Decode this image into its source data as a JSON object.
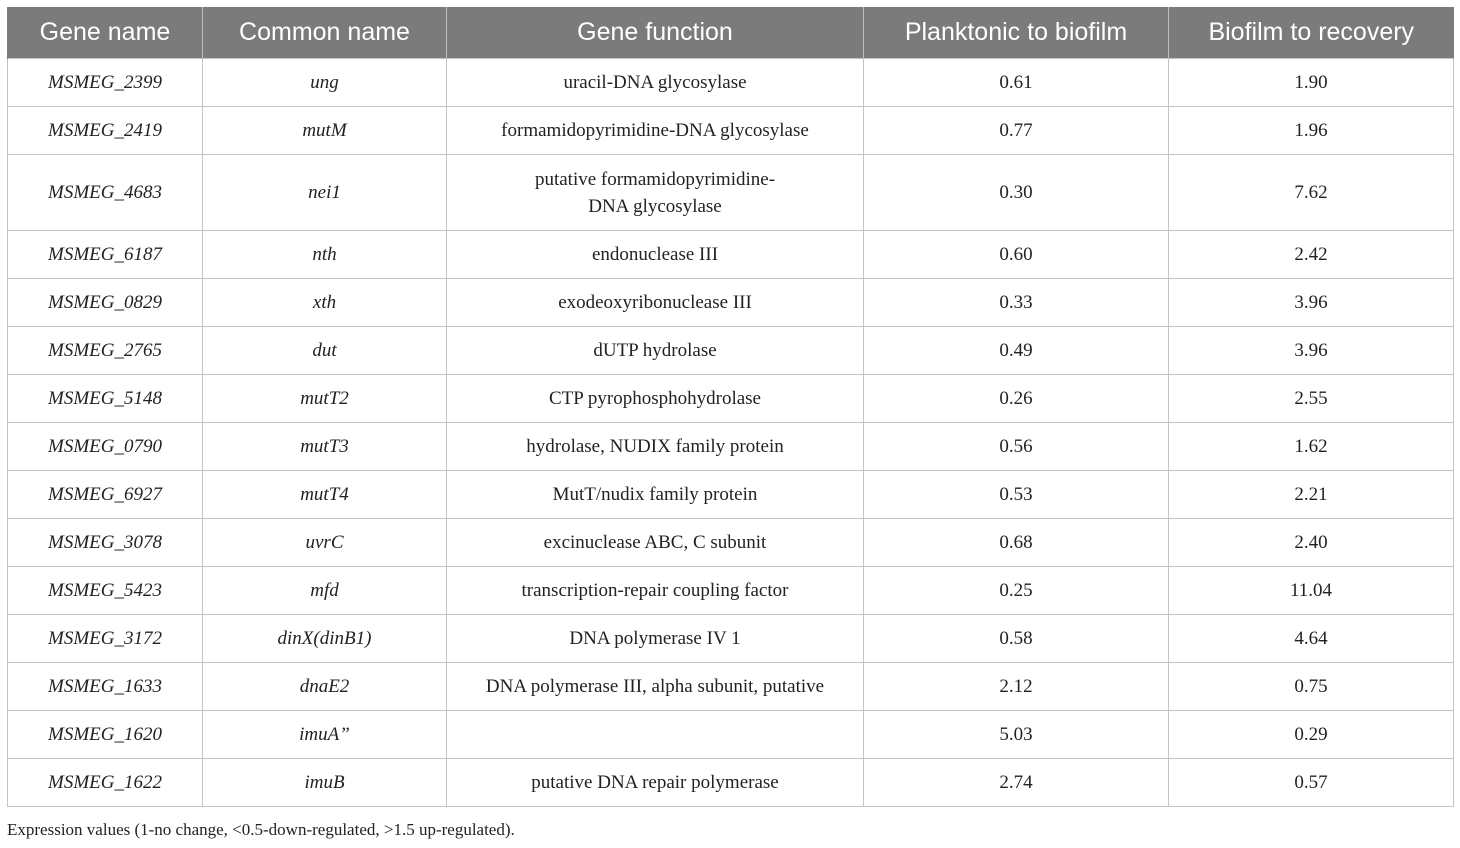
{
  "table": {
    "headers": [
      "Gene name",
      "Common name",
      "Gene function",
      "Planktonic to biofilm",
      "Biofilm to recovery"
    ],
    "rows": [
      {
        "gene": "MSMEG_2399",
        "common": "ung",
        "function": "uracil-DNA glycosylase",
        "planktonic_to_biofilm": "0.61",
        "biofilm_to_recovery": "1.90"
      },
      {
        "gene": "MSMEG_2419",
        "common": "mutM",
        "function": "formamidopyrimidine-DNA glycosylase",
        "planktonic_to_biofilm": "0.77",
        "biofilm_to_recovery": "1.96"
      },
      {
        "gene": "MSMEG_4683",
        "common": "nei1",
        "function": "putative formamidopyrimidine-DNA glycosylase",
        "planktonic_to_biofilm": "0.30",
        "biofilm_to_recovery": "7.62"
      },
      {
        "gene": "MSMEG_6187",
        "common": "nth",
        "function": "endonuclease III",
        "planktonic_to_biofilm": "0.60",
        "biofilm_to_recovery": "2.42"
      },
      {
        "gene": "MSMEG_0829",
        "common": "xth",
        "function": "exodeoxyribonuclease III",
        "planktonic_to_biofilm": "0.33",
        "biofilm_to_recovery": "3.96"
      },
      {
        "gene": "MSMEG_2765",
        "common": "dut",
        "function": "dUTP hydrolase",
        "planktonic_to_biofilm": "0.49",
        "biofilm_to_recovery": "3.96"
      },
      {
        "gene": "MSMEG_5148",
        "common": "mutT2",
        "function": "CTP pyrophosphohydrolase",
        "planktonic_to_biofilm": "0.26",
        "biofilm_to_recovery": "2.55"
      },
      {
        "gene": "MSMEG_0790",
        "common": "mutT3",
        "function": "hydrolase, NUDIX family protein",
        "planktonic_to_biofilm": "0.56",
        "biofilm_to_recovery": "1.62"
      },
      {
        "gene": "MSMEG_6927",
        "common": "mutT4",
        "function": "MutT/nudix family protein",
        "planktonic_to_biofilm": "0.53",
        "biofilm_to_recovery": "2.21"
      },
      {
        "gene": "MSMEG_3078",
        "common": "uvrC",
        "function": "excinuclease ABC, C subunit",
        "planktonic_to_biofilm": "0.68",
        "biofilm_to_recovery": "2.40"
      },
      {
        "gene": "MSMEG_5423",
        "common": "mfd",
        "function": "transcription-repair coupling factor",
        "planktonic_to_biofilm": "0.25",
        "biofilm_to_recovery": "11.04"
      },
      {
        "gene": "MSMEG_3172",
        "common": "dinX(dinB1)",
        "function": "DNA polymerase IV 1",
        "planktonic_to_biofilm": "0.58",
        "biofilm_to_recovery": "4.64"
      },
      {
        "gene": "MSMEG_1633",
        "common": "dnaE2",
        "function": "DNA polymerase III, alpha subunit, putative",
        "planktonic_to_biofilm": "2.12",
        "biofilm_to_recovery": "0.75"
      },
      {
        "gene": "MSMEG_1620",
        "common": "imuA”",
        "function": "",
        "planktonic_to_biofilm": "5.03",
        "biofilm_to_recovery": "0.29"
      },
      {
        "gene": "MSMEG_1622",
        "common": "imuB",
        "function": "putative DNA repair polymerase",
        "planktonic_to_biofilm": "2.74",
        "biofilm_to_recovery": "0.57"
      }
    ]
  },
  "footnote": "Expression values (1-no change, <0.5-down-regulated, >1.5 up-regulated)."
}
